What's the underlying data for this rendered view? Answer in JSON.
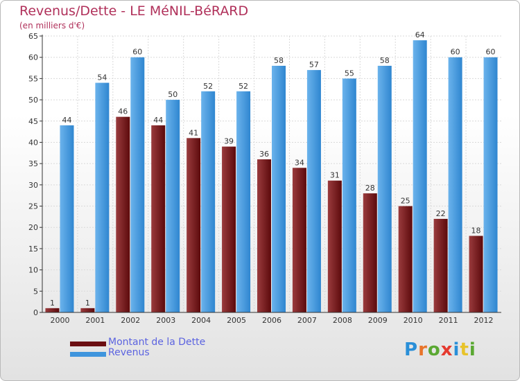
{
  "title": "Revenus/Dette - LE MéNIL-BéRARD",
  "subtitle": "(en milliers d'€)",
  "logo": {
    "text": "Proxiti",
    "letter_colors": [
      "#2a8fd8",
      "#e8742a",
      "#5aa832",
      "#e53a2f",
      "#2a8fd8",
      "#e8c32a",
      "#5aa832"
    ]
  },
  "legend": [
    {
      "label": "Montant de la Dette",
      "color": "#6b0f12"
    },
    {
      "label": "Revenus",
      "color": "#3f95dd"
    }
  ],
  "colors": {
    "dette_light": "#9a3b3d",
    "dette_dark": "#5c0a0c",
    "revenus_light": "#6bb3ec",
    "revenus_dark": "#2f86d0",
    "grid": "#d9d9d9",
    "axis": "#333333",
    "tick_label": "#333333",
    "value_label": "#333333"
  },
  "chart_data": {
    "type": "bar",
    "categories": [
      "2000",
      "2001",
      "2002",
      "2003",
      "2004",
      "2005",
      "2006",
      "2007",
      "2008",
      "2009",
      "2010",
      "2011",
      "2012"
    ],
    "series": [
      {
        "name": "Montant de la Dette",
        "values": [
          1,
          1,
          46,
          44,
          41,
          39,
          36,
          34,
          31,
          28,
          25,
          22,
          18
        ]
      },
      {
        "name": "Revenus",
        "values": [
          44,
          54,
          60,
          50,
          52,
          52,
          58,
          57,
          55,
          58,
          64,
          60,
          60
        ]
      }
    ],
    "ylim": [
      0,
      65
    ],
    "yticks": [
      0,
      5,
      10,
      15,
      20,
      25,
      30,
      35,
      40,
      45,
      50,
      55,
      60,
      65
    ],
    "grid": true,
    "legend_position": "bottom-left"
  }
}
